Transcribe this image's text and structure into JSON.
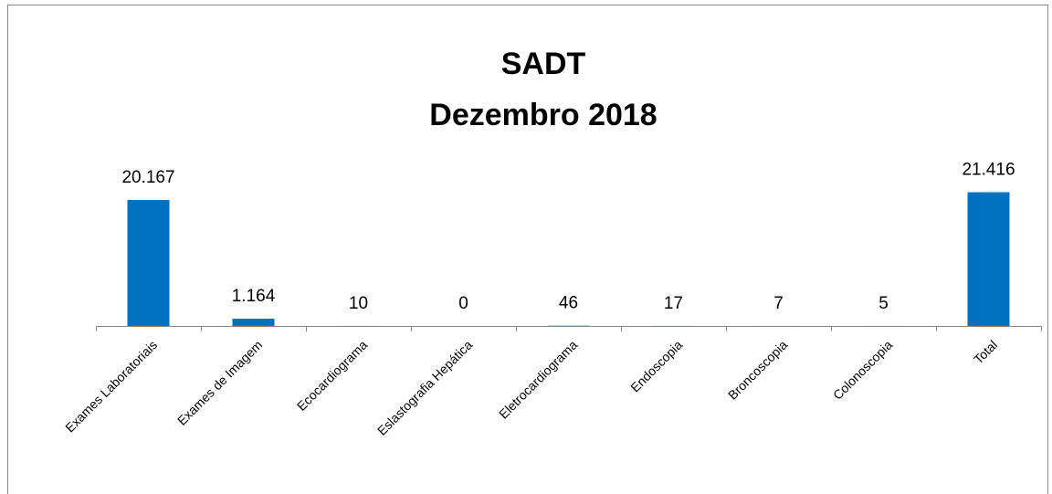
{
  "chart_data": {
    "type": "bar",
    "title": "SADT",
    "subtitle": "Dezembro 2018",
    "categories": [
      "Exames Laboratoriais",
      "Exames de Imagem",
      "Ecocardiograma",
      "Eslastografia Hepática",
      "Eletrocardiograma",
      "Endoscopia",
      "Broncoscopia",
      "Colonoscopia",
      "Total"
    ],
    "values": [
      20167,
      1164,
      10,
      0,
      46,
      17,
      7,
      5,
      21416
    ],
    "value_labels": [
      "20.167",
      "1.164",
      "10",
      "0",
      "46",
      "17",
      "7",
      "5",
      "21.416"
    ],
    "color": "#0070c0",
    "ylim": [
      0,
      25000
    ],
    "grid": false
  }
}
